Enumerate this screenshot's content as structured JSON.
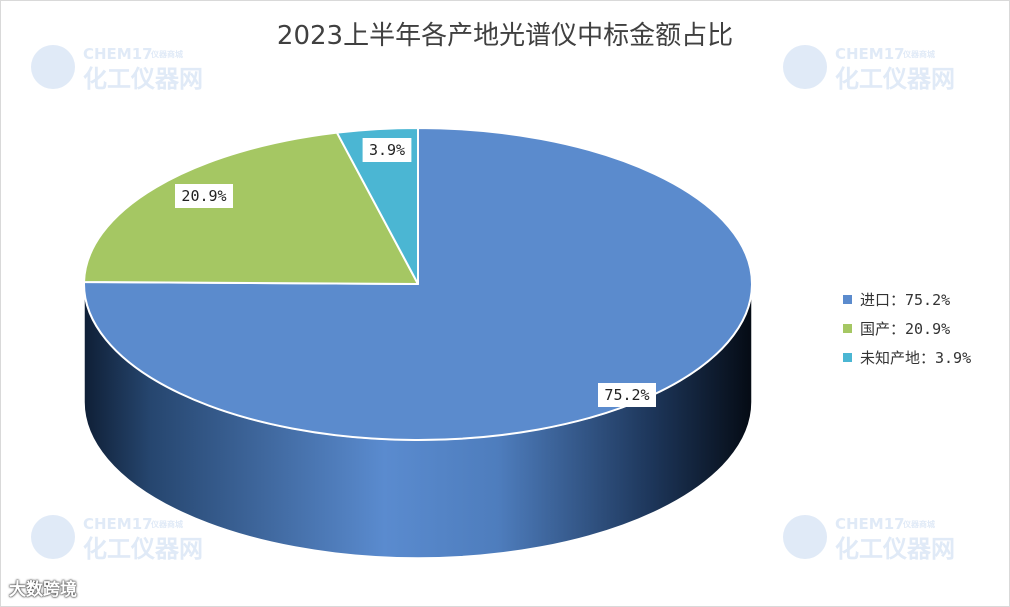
{
  "colors": {
    "imported": "#5b8bcd",
    "domestic": "#a5c763",
    "unknown": "#4bb6d3",
    "wall_dark": "#0a1626",
    "wall_mid": "#4a73ad"
  },
  "watermark": {
    "brand": "CHEM17",
    "tagline": "仪器商城",
    "name": "化工仪器网"
  },
  "footer": {
    "mark": "大数跨境"
  },
  "chart_data": {
    "type": "pie",
    "title": "2023上半年各产地光谱仪中标金额占比",
    "slices": [
      {
        "key": "imported",
        "label": "进口",
        "value": 75.2,
        "data_label": "75.2%",
        "legend": "进口：75.2%",
        "color": "#5b8bcd"
      },
      {
        "key": "domestic",
        "label": "国产",
        "value": 20.9,
        "data_label": "20.9%",
        "legend": "国产：20.9%",
        "color": "#a5c763"
      },
      {
        "key": "unknown",
        "label": "未知产地",
        "value": 3.9,
        "data_label": "3.9%",
        "legend": "未知产地：3.9%",
        "color": "#4bb6d3"
      }
    ],
    "legend_position": "right",
    "style": "3d"
  }
}
